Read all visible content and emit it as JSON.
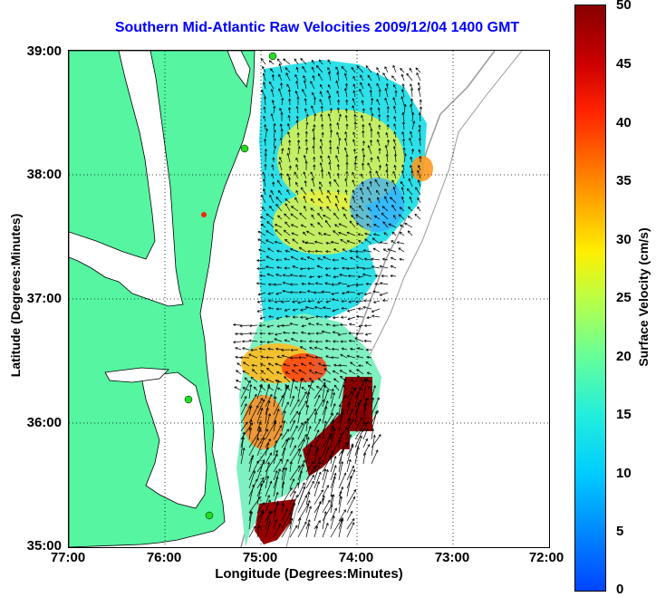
{
  "title": "Southern Mid-Atlantic Raw Velocities 2009/12/04 1400 GMT",
  "x_axis": {
    "label": "Longitude (Degrees:Minutes)",
    "ticks": [
      "77:00",
      "76:00",
      "75:00",
      "74:00",
      "73:00",
      "72:00"
    ]
  },
  "y_axis": {
    "label": "Latitude (Degrees:Minutes)",
    "ticks": [
      "39:00",
      "38:00",
      "37:00",
      "36:00",
      "35:00"
    ]
  },
  "colorbar": {
    "label": "Surface Velocity (cm/s)",
    "ticks": [
      "50",
      "45",
      "40",
      "35",
      "30",
      "25",
      "20",
      "15",
      "10",
      "5",
      "0"
    ]
  },
  "colors": {
    "land": "#55f5a2",
    "title": "#0000ff",
    "grid": "#000000",
    "bathymetry": "#999999",
    "station": "#22dd22",
    "station_highlight": "#ff2200"
  }
}
